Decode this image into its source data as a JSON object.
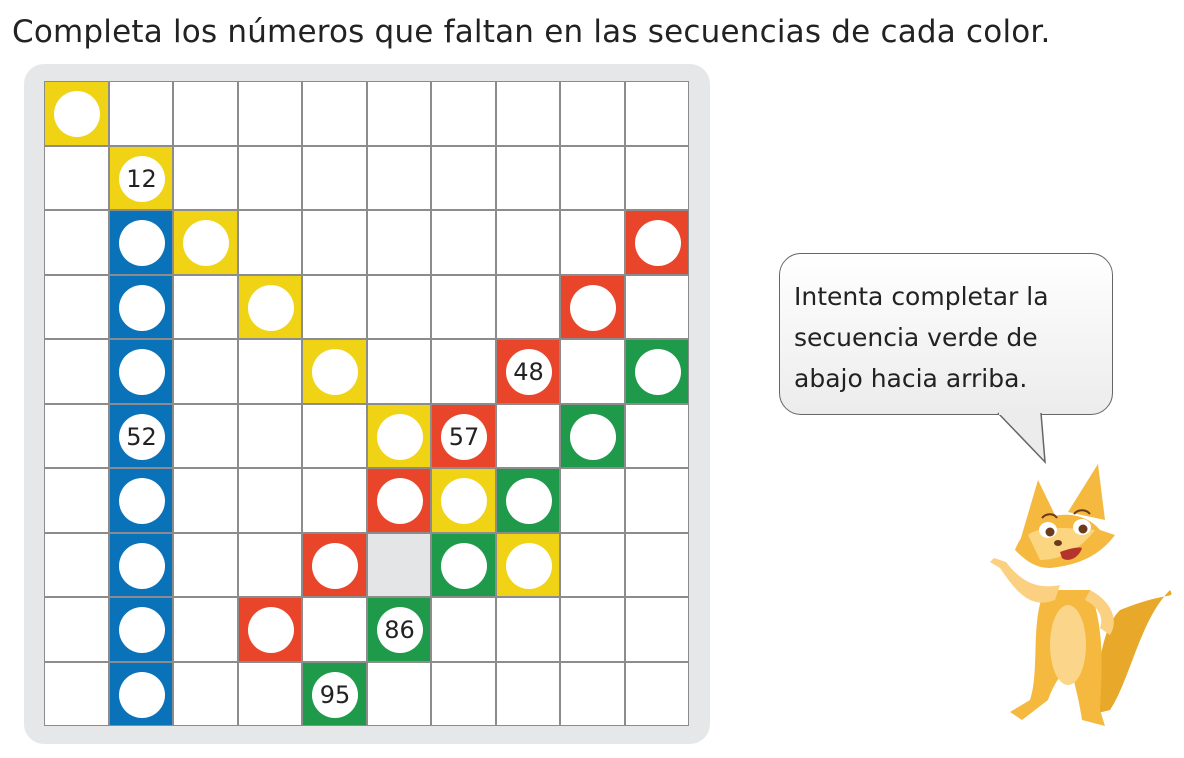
{
  "instruction": "Completa los números que faltan en las secuencias de cada color.",
  "colors": {
    "yellow": "#f0d314",
    "blue": "#0a72b8",
    "red": "#e8452a",
    "green": "#1f9a4a",
    "gray": "#e4e5e6"
  },
  "grid": {
    "size": 10,
    "cells": [
      {
        "row": 0,
        "col": 0,
        "color": "yellow",
        "label": ""
      },
      {
        "row": 1,
        "col": 1,
        "color": "yellow",
        "label": "12"
      },
      {
        "row": 2,
        "col": 1,
        "color": "blue",
        "label": ""
      },
      {
        "row": 2,
        "col": 2,
        "color": "yellow",
        "label": ""
      },
      {
        "row": 2,
        "col": 9,
        "color": "red",
        "label": ""
      },
      {
        "row": 3,
        "col": 1,
        "color": "blue",
        "label": ""
      },
      {
        "row": 3,
        "col": 3,
        "color": "yellow",
        "label": ""
      },
      {
        "row": 3,
        "col": 8,
        "color": "red",
        "label": ""
      },
      {
        "row": 4,
        "col": 1,
        "color": "blue",
        "label": ""
      },
      {
        "row": 4,
        "col": 4,
        "color": "yellow",
        "label": ""
      },
      {
        "row": 4,
        "col": 7,
        "color": "red",
        "label": "48"
      },
      {
        "row": 4,
        "col": 9,
        "color": "green",
        "label": ""
      },
      {
        "row": 5,
        "col": 1,
        "color": "blue",
        "label": "52"
      },
      {
        "row": 5,
        "col": 5,
        "color": "yellow",
        "label": ""
      },
      {
        "row": 5,
        "col": 6,
        "color": "red",
        "label": "57"
      },
      {
        "row": 5,
        "col": 8,
        "color": "green",
        "label": ""
      },
      {
        "row": 6,
        "col": 1,
        "color": "blue",
        "label": ""
      },
      {
        "row": 6,
        "col": 5,
        "color": "red",
        "label": ""
      },
      {
        "row": 6,
        "col": 6,
        "color": "yellow",
        "label": ""
      },
      {
        "row": 6,
        "col": 7,
        "color": "green",
        "label": ""
      },
      {
        "row": 7,
        "col": 1,
        "color": "blue",
        "label": ""
      },
      {
        "row": 7,
        "col": 4,
        "color": "red",
        "label": ""
      },
      {
        "row": 7,
        "col": 5,
        "color": "gray",
        "label": null
      },
      {
        "row": 7,
        "col": 6,
        "color": "green",
        "label": ""
      },
      {
        "row": 7,
        "col": 7,
        "color": "yellow",
        "label": ""
      },
      {
        "row": 8,
        "col": 1,
        "color": "blue",
        "label": ""
      },
      {
        "row": 8,
        "col": 3,
        "color": "red",
        "label": ""
      },
      {
        "row": 8,
        "col": 5,
        "color": "green",
        "label": "86"
      },
      {
        "row": 9,
        "col": 1,
        "color": "blue",
        "label": ""
      },
      {
        "row": 9,
        "col": 4,
        "color": "green",
        "label": "95"
      }
    ]
  },
  "speech_bubble": {
    "lines": [
      "Intenta completar la",
      "secuencia verde de",
      "abajo hacia arriba."
    ]
  },
  "character": "fox"
}
